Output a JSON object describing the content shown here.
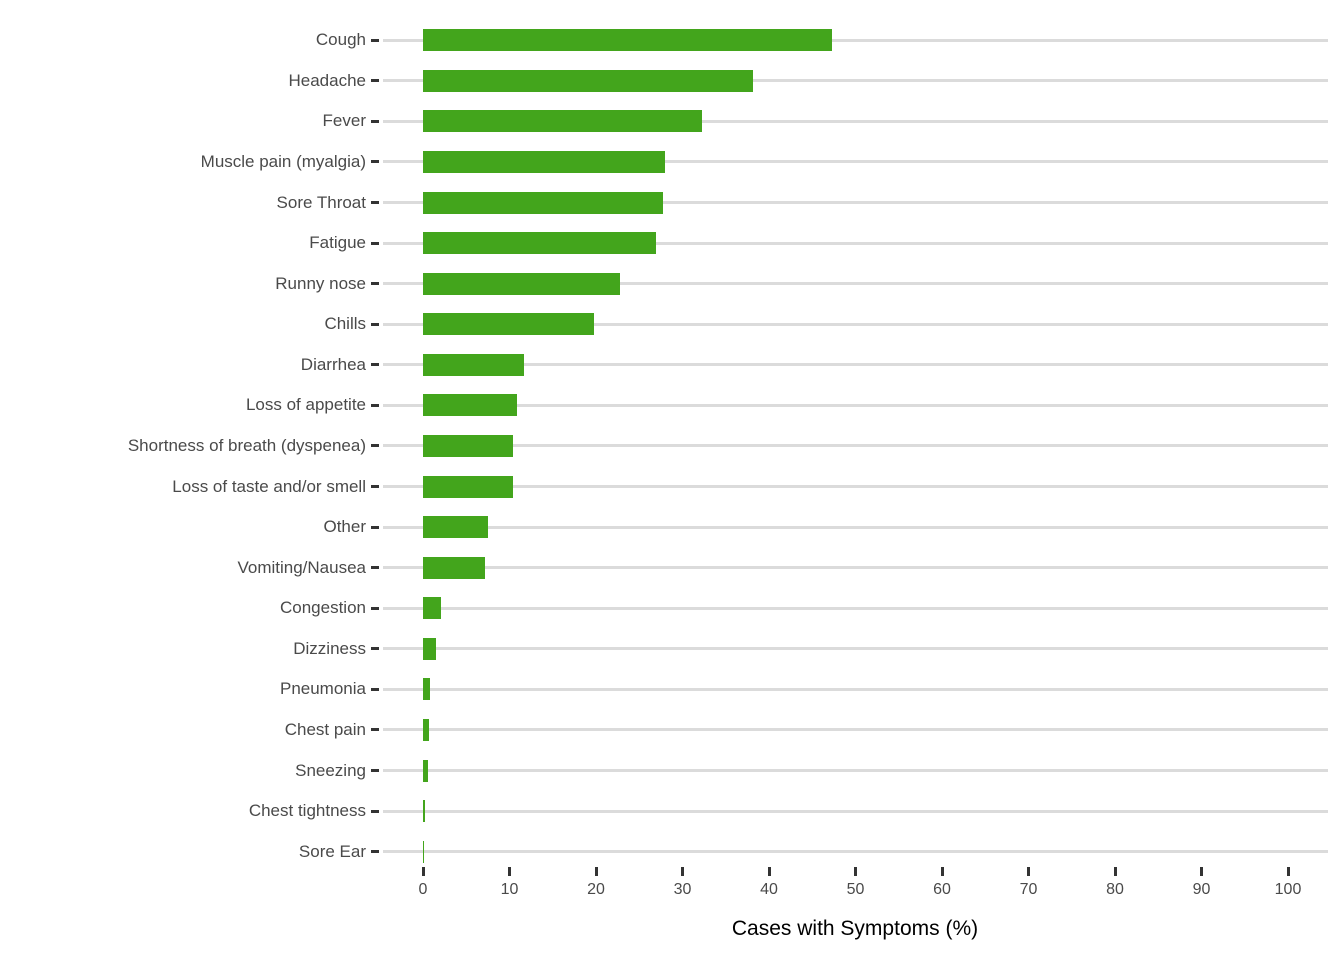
{
  "chart_data": {
    "type": "bar",
    "orientation": "horizontal",
    "title": "",
    "xlabel": "Cases with Symptoms (%)",
    "ylabel": "",
    "xlim": [
      0,
      100
    ],
    "x_ticks": [
      0,
      10,
      20,
      30,
      40,
      50,
      60,
      70,
      80,
      90,
      100
    ],
    "grid": "horizontal-category-lines-only",
    "legend_position": "none",
    "categories": [
      "Cough",
      "Headache",
      "Fever",
      "Muscle pain (myalgia)",
      "Sore Throat",
      "Fatigue",
      "Runny nose",
      "Chills",
      "Diarrhea",
      "Loss of appetite",
      "Shortness of breath (dyspenea)",
      "Loss of taste and/or smell",
      "Other",
      "Vomiting/Nausea",
      "Congestion",
      "Dizziness",
      "Pneumonia",
      "Chest pain",
      "Sneezing",
      "Chest tightness",
      "Sore Ear"
    ],
    "values": [
      47.3,
      38.2,
      32.3,
      28.0,
      27.8,
      26.9,
      22.8,
      19.8,
      11.7,
      10.9,
      10.4,
      10.4,
      7.5,
      7.2,
      2.1,
      1.5,
      0.8,
      0.7,
      0.6,
      0.2,
      0.1
    ],
    "colors": {
      "bar": "#43a51c",
      "gridline": "#dbdbdb",
      "tick_mark": "#333333",
      "axis_text": "#4a4a4a",
      "axis_title": "#000000",
      "background": "#ffffff"
    }
  }
}
